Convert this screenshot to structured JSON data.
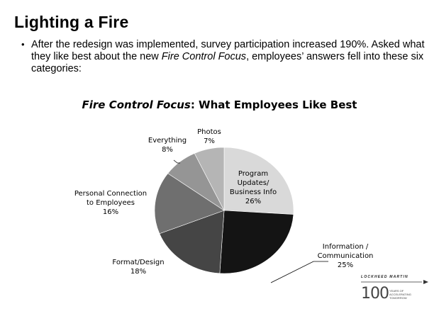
{
  "slide": {
    "title": "Lighting a Fire",
    "bullet_before": "After the redesign was implemented, survey participation increased 190%. Asked what they like best about the new ",
    "bullet_italic": "Fire Control Focus",
    "bullet_after": ", employees’ answers fell into these six categories:"
  },
  "chart_title": {
    "italic_part": "Fire Control Focus",
    "rest": ": What Employees Like Best"
  },
  "chart_data": {
    "type": "pie",
    "title": "Fire Control Focus: What Employees Like Best",
    "slices": [
      {
        "label": [
          "Program",
          "Updates/",
          "Business Info"
        ],
        "pct": "26%",
        "value": 26,
        "color": "#d9d9d9"
      },
      {
        "label": [
          "Information /",
          "Communication"
        ],
        "pct": "25%",
        "value": 25,
        "color": "#141414"
      },
      {
        "label": [
          "Format/Design"
        ],
        "pct": "18%",
        "value": 18,
        "color": "#454545"
      },
      {
        "label": [
          "Personal Connection",
          "to Employees"
        ],
        "pct": "16%",
        "value": 16,
        "color": "#6f6f6f"
      },
      {
        "label": [
          "Everything"
        ],
        "pct": "8%",
        "value": 8,
        "color": "#959595"
      },
      {
        "label": [
          "Photos"
        ],
        "pct": "7%",
        "value": 7,
        "color": "#b5b5b5"
      }
    ]
  },
  "logo": {
    "wordmark": "LOCKHEED MARTIN",
    "number": "100",
    "tagline": [
      "YEARS OF",
      "ACCELERATING",
      "TOMORROW"
    ]
  }
}
